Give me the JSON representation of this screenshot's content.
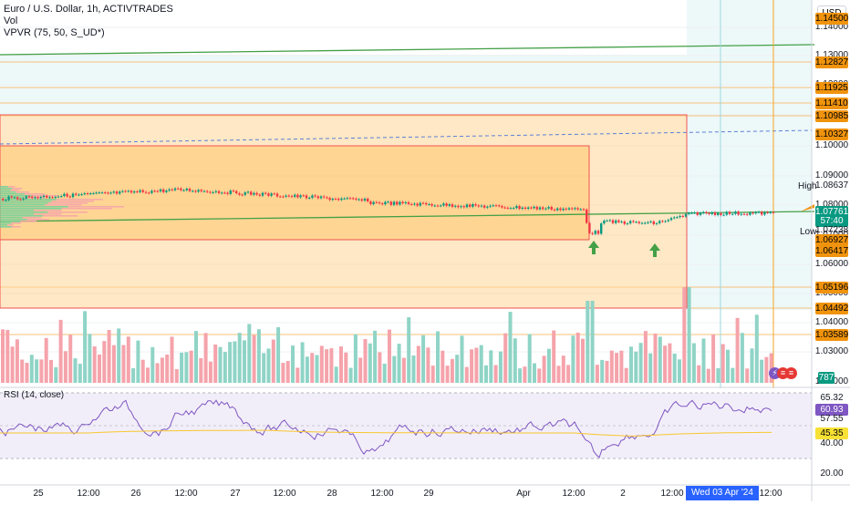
{
  "header": {
    "title": "Euro / U.S. Dollar, 1h, ACTIVTRADES",
    "indicator_vol": "Vol",
    "indicator_vpvr": "VPVR (75, 50, S_UD*)",
    "indicator_rsi": "RSI (14, close)",
    "currency_button": "USD"
  },
  "price_axis": {
    "ticks": [
      "1.14000",
      "1.13000",
      "1.12000",
      "1.11000",
      "1.10000",
      "1.09000",
      "1.08000",
      "1.07000",
      "1.06000",
      "1.05000",
      "1.04000",
      "1.03000",
      "1.02000"
    ],
    "tags": [
      {
        "text": "1.14500",
        "style": "orange"
      },
      {
        "text": "1.12827",
        "style": "orange"
      },
      {
        "text": "1.11925",
        "style": "orange"
      },
      {
        "text": "1.11410",
        "style": "orange"
      },
      {
        "text": "1.10985",
        "style": "orange"
      },
      {
        "text": "1.10327",
        "style": "orange"
      },
      {
        "text": "1.08637",
        "style": "plain"
      },
      {
        "text": "1.07761",
        "style": "green"
      },
      {
        "text": "57:40",
        "style": "green"
      },
      {
        "text": "1.07238",
        "style": "plain"
      },
      {
        "text": "1.06927",
        "style": "orange"
      },
      {
        "text": "1.06417",
        "style": "orange"
      },
      {
        "text": "1.05196",
        "style": "orange"
      },
      {
        "text": "1.04492",
        "style": "orange"
      },
      {
        "text": "1.03589",
        "style": "orange"
      }
    ],
    "high_label": "High",
    "low_label": "Low",
    "volume_badge": "787"
  },
  "rsi_axis": {
    "tags": [
      {
        "text": "65.32",
        "style": "plain"
      },
      {
        "text": "60.93",
        "style": "purple"
      },
      {
        "text": "57.55",
        "style": "plain"
      },
      {
        "text": "45.35",
        "style": "yellow"
      },
      {
        "text": "40.00",
        "style": "plain"
      },
      {
        "text": "20.00",
        "style": "plain"
      }
    ]
  },
  "time_axis": {
    "labels": [
      "25",
      "12:00",
      "26",
      "12:00",
      "27",
      "12:00",
      "28",
      "12:00",
      "29",
      "Apr",
      "12:00",
      "2",
      "12:00",
      "12:00"
    ],
    "crosshair_label": "Wed 03 Apr '24   00:00"
  },
  "colors": {
    "up": "#089981",
    "down": "#f23645",
    "volume_up": "#8fd4c6",
    "volume_down": "#f5a3ab",
    "rsi_line": "#7e57c2",
    "rsi_ma": "#f7c72f",
    "box_fill": "#ffd596",
    "trend_line": "#4caf50",
    "orange_tag": "#f0930d"
  },
  "icons": [
    "lightning-icon",
    "flag-icon",
    "flag-icon"
  ]
}
